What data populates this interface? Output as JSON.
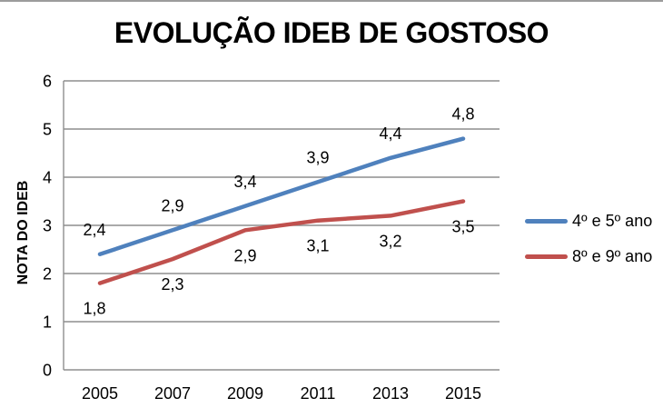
{
  "window": {
    "background": "#ffffff",
    "top_border_color": "#9c9c9c"
  },
  "chart_data": {
    "type": "line",
    "title": "EVOLUÇÃO IDEB DE GOSTOSO",
    "xlabel": "",
    "ylabel": "NOTA DO IDEB",
    "categories": [
      "2005",
      "2007",
      "2009",
      "2011",
      "2013",
      "2015"
    ],
    "series": [
      {
        "name": "4º e 5º ano",
        "color": "#4F81BD",
        "values": [
          2.4,
          2.9,
          3.4,
          3.9,
          4.4,
          4.8
        ],
        "labels": [
          "2,4",
          "2,9",
          "3,4",
          "3,9",
          "4,4",
          "4,8"
        ],
        "label_position": "above"
      },
      {
        "name": "8º e 9º ano",
        "color": "#C0504D",
        "values": [
          1.8,
          2.3,
          2.9,
          3.1,
          3.2,
          3.5
        ],
        "labels": [
          "1,8",
          "2,3",
          "2,9",
          "3,1",
          "3,2",
          "3,5"
        ],
        "label_position": "below"
      }
    ],
    "ylim": [
      0,
      6
    ],
    "yticks": [
      "0",
      "1",
      "2",
      "3",
      "4",
      "5",
      "6"
    ],
    "grid": true,
    "gridline_color": "#8e8e8e",
    "axis_color": "#8e8e8e",
    "legend_position": "right"
  }
}
